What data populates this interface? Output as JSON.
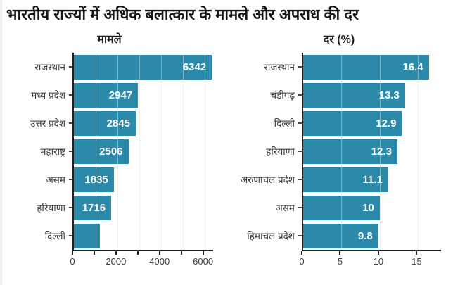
{
  "title": "भारतीय राज्यों में अधिक बलात्कार के मामले और अपराध की दर",
  "colors": {
    "bar": "#2b8aaa",
    "axis": "#1f1f1f",
    "value_label": "#ffffff",
    "category_label": "#3a3a3a",
    "tick_label": "#3f3f3f",
    "gridline": "#e7e7e7",
    "background": "#ffffff"
  },
  "chart_data": [
    {
      "type": "bar",
      "orientation": "horizontal",
      "title": "मामले",
      "categories": [
        "राजस्थान",
        "मध्य प्रदेश",
        "उत्तर प्रदेश",
        "महाराष्ट्र",
        "असम",
        "हरियाणा",
        "दिल्ली"
      ],
      "values": [
        6342,
        2947,
        2845,
        2506,
        1835,
        1716,
        1200
      ],
      "bar_labels": [
        "6342",
        "2947",
        "2845",
        "2506",
        "1835",
        "1716",
        ""
      ],
      "xlim": [
        0,
        6400
      ],
      "xticks": [
        {
          "value": 0,
          "label": "0"
        },
        {
          "value": 1000,
          "label": ""
        },
        {
          "value": 2000,
          "label": "2000"
        },
        {
          "value": 3000,
          "label": ""
        },
        {
          "value": 4000,
          "label": "4000"
        },
        {
          "value": 5000,
          "label": ""
        },
        {
          "value": 6000,
          "label": "6000"
        }
      ],
      "gridlines": [
        1000,
        2000,
        3000,
        4000,
        5000,
        6000
      ],
      "grid": true,
      "legend": false
    },
    {
      "type": "bar",
      "orientation": "horizontal",
      "title": "दर (%)",
      "categories": [
        "राजस्थान",
        "चंडीगढ़",
        "दिल्ली",
        "हरियाणा",
        "अरुणाचल प्रदेश",
        "असम",
        "हिमाचल प्रदेश"
      ],
      "values": [
        16.4,
        13.3,
        12.9,
        12.3,
        11.1,
        10,
        9.8
      ],
      "bar_labels": [
        "16.4",
        "13.3",
        "12.9",
        "12.3",
        "11.1",
        "10",
        "9.8"
      ],
      "xlim": [
        0,
        18
      ],
      "xticks": [
        {
          "value": 0,
          "label": "0"
        },
        {
          "value": 5,
          "label": "5"
        },
        {
          "value": 10,
          "label": "10"
        },
        {
          "value": 15,
          "label": "15"
        }
      ],
      "gridlines": [
        5,
        10,
        15
      ],
      "grid": true,
      "legend": false
    }
  ]
}
